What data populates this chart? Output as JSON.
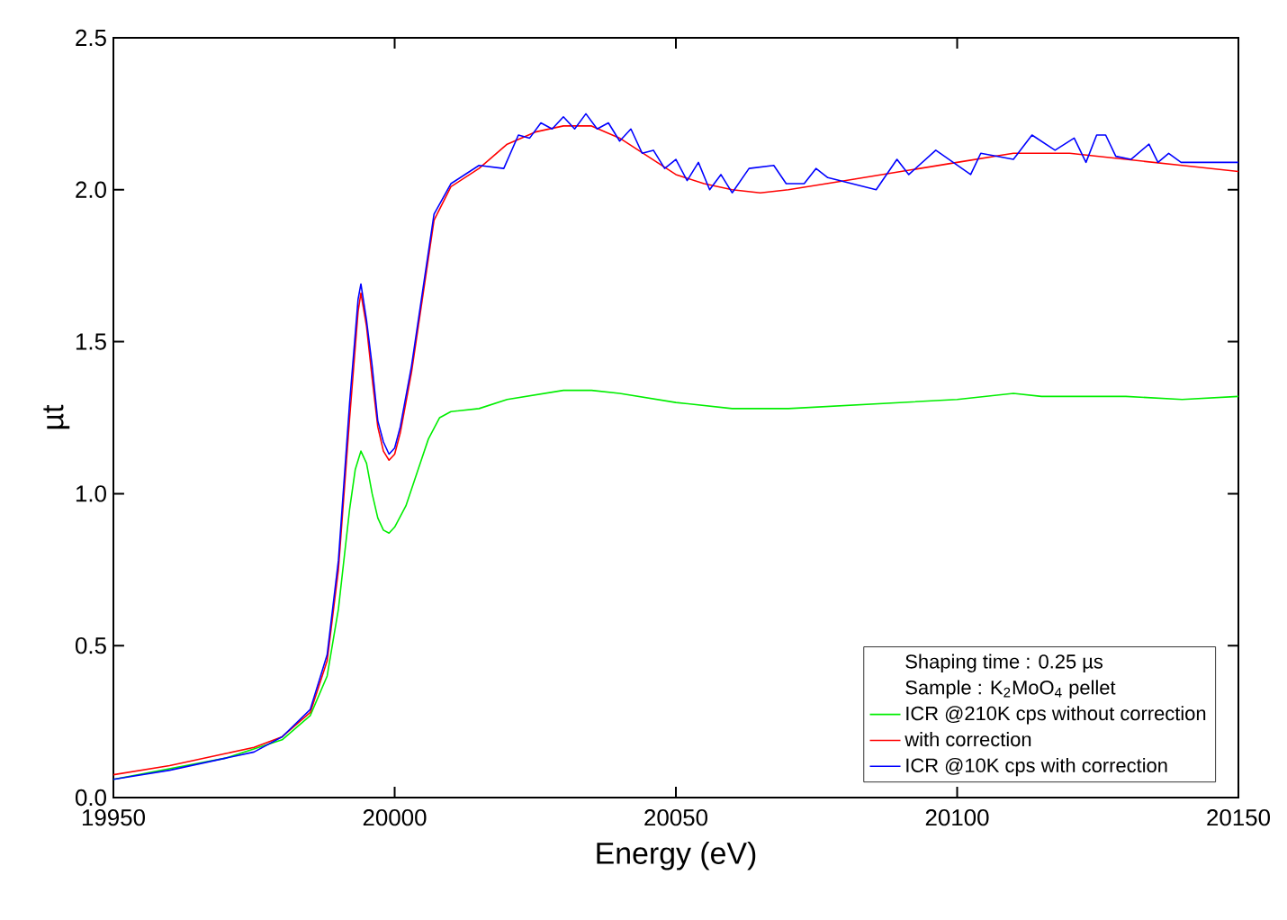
{
  "chart_data": {
    "type": "line",
    "xlabel": "Energy (eV)",
    "ylabel": "µt",
    "xlim": [
      19950,
      20150
    ],
    "ylim": [
      0,
      2.5
    ],
    "xticks": [
      19950,
      20000,
      20050,
      20100,
      20150
    ],
    "yticks": [
      {
        "value": 0,
        "label": "0.0"
      },
      {
        "value": 0.5,
        "label": "0.5"
      },
      {
        "value": 1,
        "label": "1.0"
      },
      {
        "value": 1.5,
        "label": "1.5"
      },
      {
        "value": 2,
        "label": "2.0"
      },
      {
        "value": 2.5,
        "label": "2.5"
      }
    ],
    "grid": false,
    "legend": "bottom right",
    "marker": "none",
    "line_style": "solid",
    "annotations": [
      "Shaping time : 0.25 µs",
      "Sample : K$_{2}$MoO$_{4}$ pellet"
    ],
    "series": [
      {
        "name": "ICR @210K cps without correction",
        "color": "#00ee00",
        "x": [
          19950,
          19970,
          19980,
          19985,
          19988,
          19990,
          19992,
          19993,
          19994,
          19995,
          19996,
          19997,
          19998,
          19999,
          20000,
          20002,
          20004,
          20006,
          20008,
          20010,
          20015,
          20020,
          20030,
          20035,
          20040,
          20050,
          20060,
          20070,
          20080,
          20090,
          20100,
          20110,
          20115,
          20120,
          20130,
          20140,
          20150
        ],
        "values": [
          0.06,
          0.13,
          0.19,
          0.27,
          0.4,
          0.62,
          0.95,
          1.08,
          1.14,
          1.1,
          1.0,
          0.92,
          0.88,
          0.87,
          0.89,
          0.96,
          1.07,
          1.18,
          1.25,
          1.27,
          1.28,
          1.31,
          1.34,
          1.34,
          1.33,
          1.3,
          1.28,
          1.28,
          1.29,
          1.3,
          1.31,
          1.33,
          1.32,
          1.32,
          1.32,
          1.31,
          1.32
        ]
      },
      {
        "name": "with correction",
        "color": "#ff0000",
        "x": [
          19950,
          19960,
          19970,
          19975,
          19980,
          19985,
          19988,
          19990,
          19992,
          19993.5,
          19994,
          19995,
          19996,
          19997,
          19998,
          19999,
          20000,
          20001,
          20003,
          20005,
          20007,
          20010,
          20015,
          20020,
          20025,
          20030,
          20035,
          20040,
          20045,
          20050,
          20055,
          20060,
          20065,
          20070,
          20080,
          20090,
          20100,
          20110,
          20120,
          20130,
          20140,
          20150
        ],
        "values": [
          0.075,
          0.105,
          0.145,
          0.165,
          0.2,
          0.28,
          0.45,
          0.75,
          1.25,
          1.6,
          1.66,
          1.55,
          1.38,
          1.22,
          1.14,
          1.11,
          1.13,
          1.2,
          1.4,
          1.65,
          1.9,
          2.01,
          2.07,
          2.15,
          2.19,
          2.21,
          2.21,
          2.17,
          2.11,
          2.05,
          2.02,
          2.0,
          1.99,
          2.0,
          2.03,
          2.06,
          2.09,
          2.12,
          2.12,
          2.1,
          2.08,
          2.06
        ]
      },
      {
        "name": "ICR @10K cps with correction",
        "color": "#0000ff",
        "x": [
          19950,
          19960,
          19970,
          19975,
          19980,
          19985,
          19988,
          19990,
          19992,
          19993.5,
          19994,
          19995,
          19996,
          19997,
          19998,
          19999,
          20000,
          20001,
          20003,
          20005,
          20007,
          20010,
          20015,
          20019.4,
          20022,
          20024,
          20026,
          20028,
          20030,
          20032,
          20034,
          20036,
          20038,
          20040,
          20042,
          20044,
          20046,
          20048,
          20050,
          20052,
          20054,
          20056,
          20058,
          20060,
          20063,
          20067.4,
          20069.6,
          20072.8,
          20074.9,
          20077,
          20081.3,
          20085.6,
          20089.3,
          20091.4,
          20096.2,
          20102.4,
          20104.2,
          20110,
          20113.3,
          20117.4,
          20120.8,
          20122.9,
          20124.8,
          20126.4,
          20128.2,
          20130.9,
          20134.1,
          20135.7,
          20137.6,
          20139.8,
          20150
        ],
        "values": [
          0.06,
          0.09,
          0.13,
          0.15,
          0.2,
          0.29,
          0.47,
          0.78,
          1.3,
          1.64,
          1.69,
          1.57,
          1.42,
          1.24,
          1.17,
          1.13,
          1.15,
          1.22,
          1.42,
          1.67,
          1.92,
          2.02,
          2.08,
          2.07,
          2.18,
          2.17,
          2.22,
          2.2,
          2.24,
          2.2,
          2.25,
          2.2,
          2.22,
          2.16,
          2.2,
          2.12,
          2.13,
          2.07,
          2.1,
          2.03,
          2.09,
          2.0,
          2.05,
          1.99,
          2.07,
          2.08,
          2.02,
          2.02,
          2.07,
          2.04,
          2.02,
          2.0,
          2.1,
          2.05,
          2.13,
          2.05,
          2.12,
          2.1,
          2.18,
          2.13,
          2.17,
          2.09,
          2.18,
          2.18,
          2.11,
          2.1,
          2.15,
          2.09,
          2.12,
          2.09,
          2.09
        ]
      }
    ]
  }
}
